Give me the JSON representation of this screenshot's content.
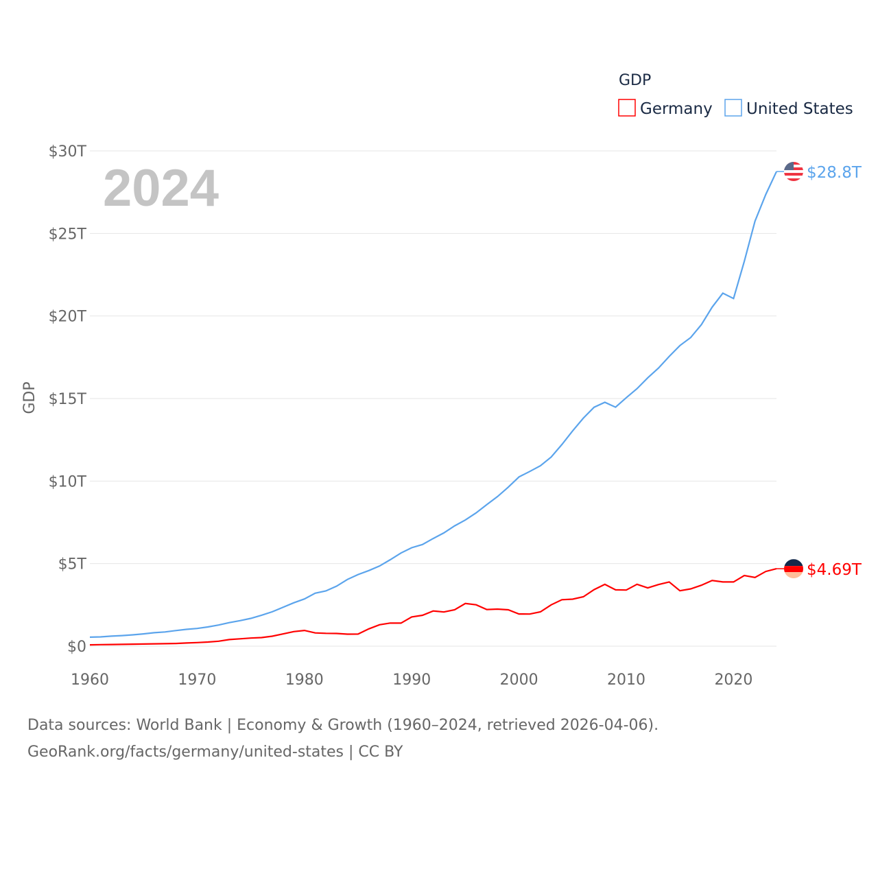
{
  "chart_data": {
    "type": "line",
    "title": "GDP",
    "ylabel": "GDP",
    "xlabel": "",
    "year_label": "2024",
    "xlim": [
      1960,
      2024
    ],
    "ylim": [
      0,
      30
    ],
    "x_ticks": [
      1960,
      1970,
      1980,
      1990,
      2000,
      2010,
      2020
    ],
    "x_tick_labels": [
      "1960",
      "1970",
      "1980",
      "1990",
      "2000",
      "2010",
      "2020"
    ],
    "y_ticks": [
      0,
      5,
      10,
      15,
      20,
      25,
      30
    ],
    "y_tick_labels": [
      "$0",
      "$5T",
      "$10T",
      "$15T",
      "$20T",
      "$25T",
      "$30T"
    ],
    "grid": true,
    "legend_position": "top-right",
    "x": [
      1960,
      1961,
      1962,
      1963,
      1964,
      1965,
      1966,
      1967,
      1968,
      1969,
      1970,
      1971,
      1972,
      1973,
      1974,
      1975,
      1976,
      1977,
      1978,
      1979,
      1980,
      1981,
      1982,
      1983,
      1984,
      1985,
      1986,
      1987,
      1988,
      1989,
      1990,
      1991,
      1992,
      1993,
      1994,
      1995,
      1996,
      1997,
      1998,
      1999,
      2000,
      2001,
      2002,
      2003,
      2004,
      2005,
      2006,
      2007,
      2008,
      2009,
      2010,
      2011,
      2012,
      2013,
      2014,
      2015,
      2016,
      2017,
      2018,
      2019,
      2020,
      2021,
      2022,
      2023,
      2024
    ],
    "series": [
      {
        "name": "Germany",
        "color": "#ff0000",
        "end_label": "$4.69T",
        "flag": "germany-flag",
        "values": [
          0.08,
          0.09,
          0.1,
          0.11,
          0.12,
          0.13,
          0.14,
          0.15,
          0.16,
          0.19,
          0.216,
          0.249,
          0.3,
          0.398,
          0.446,
          0.491,
          0.52,
          0.601,
          0.74,
          0.881,
          0.95,
          0.8,
          0.777,
          0.77,
          0.726,
          0.732,
          1.046,
          1.297,
          1.401,
          1.398,
          1.772,
          1.868,
          2.131,
          2.071,
          2.206,
          2.586,
          2.504,
          2.219,
          2.244,
          2.201,
          1.948,
          1.946,
          2.078,
          2.502,
          2.815,
          2.846,
          2.993,
          3.425,
          3.745,
          3.412,
          3.4,
          3.75,
          3.528,
          3.733,
          3.89,
          3.357,
          3.468,
          3.69,
          3.975,
          3.889,
          3.888,
          4.278,
          4.164,
          4.526,
          4.69
        ]
      },
      {
        "name": "United States",
        "color": "#5ba4ec",
        "end_label": "$28.8T",
        "flag": "us-flag",
        "values": [
          0.543,
          0.563,
          0.605,
          0.638,
          0.686,
          0.744,
          0.815,
          0.862,
          0.943,
          1.019,
          1.073,
          1.165,
          1.28,
          1.425,
          1.545,
          1.684,
          1.873,
          2.082,
          2.352,
          2.627,
          2.857,
          3.207,
          3.343,
          3.634,
          4.037,
          4.339,
          4.58,
          4.855,
          5.236,
          5.642,
          5.963,
          6.158,
          6.52,
          6.859,
          7.287,
          7.64,
          8.073,
          8.578,
          9.063,
          9.631,
          10.251,
          10.582,
          10.929,
          11.457,
          12.217,
          13.039,
          13.816,
          14.474,
          14.77,
          14.478,
          15.049,
          15.6,
          16.254,
          16.843,
          17.551,
          18.206,
          18.695,
          19.477,
          20.533,
          21.381,
          21.06,
          23.315,
          25.744,
          27.361,
          28.751
        ]
      }
    ]
  },
  "footer": {
    "line1": "Data sources: World Bank | Economy & Growth (1960–2024, retrieved 2026-04-06).",
    "line2": "GeoRank.org/facts/germany/united-states | CC BY"
  }
}
